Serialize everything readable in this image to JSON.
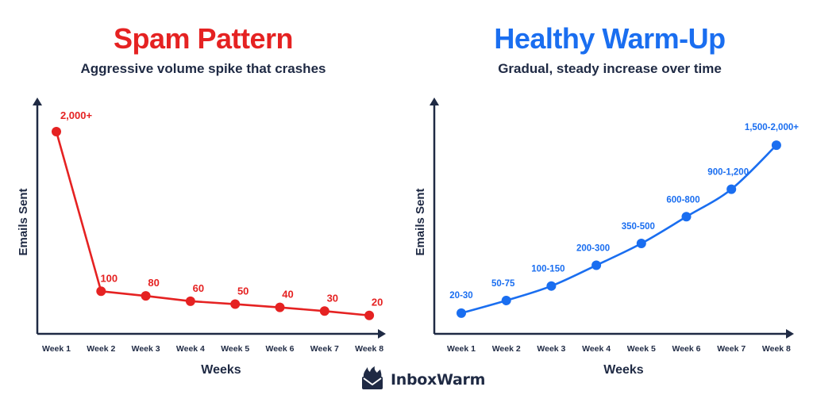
{
  "brand": {
    "name": "InboxWarm",
    "logo_icon": "envelope-with-flames-icon"
  },
  "colors": {
    "spam": "#e52222",
    "healthy": "#1a6ef0",
    "axis": "#1f2a44"
  },
  "chart_data": [
    {
      "id": "spam",
      "type": "line",
      "title": "Spam Pattern",
      "subtitle": "Aggressive volume spike that crashes",
      "xlabel": "Weeks",
      "ylabel": "Emails Sent",
      "categories": [
        "Week 1",
        "Week 2",
        "Week 3",
        "Week 4",
        "Week 5",
        "Week 6",
        "Week 7",
        "Week 8"
      ],
      "values": [
        2000,
        100,
        80,
        60,
        50,
        40,
        30,
        20
      ],
      "data_labels": [
        "2,000+",
        "100",
        "80",
        "60",
        "50",
        "40",
        "30",
        "20"
      ],
      "ylim": [
        0,
        2200
      ],
      "y_scale": "non-linear (illustrative, no y tick labels)",
      "grid": false,
      "legend": "none",
      "color": "#e52222"
    },
    {
      "id": "healthy",
      "type": "line",
      "title": "Healthy Warm-Up",
      "subtitle": "Gradual, steady increase over time",
      "xlabel": "Weeks",
      "ylabel": "Emails Sent",
      "categories": [
        "Week 1",
        "Week 2",
        "Week 3",
        "Week 4",
        "Week 5",
        "Week 6",
        "Week 7",
        "Week 8"
      ],
      "values": [
        25,
        62.5,
        125,
        250,
        425,
        700,
        1050,
        1750
      ],
      "data_labels": [
        "20-30",
        "50-75",
        "100-150",
        "200-300",
        "350-500",
        "600-800",
        "900-1,200",
        "1,500-2,000+"
      ],
      "ylim": [
        0,
        2200
      ],
      "y_scale": "non-linear (illustrative, no y tick labels)",
      "grid": false,
      "legend": "none",
      "color": "#1a6ef0"
    }
  ]
}
